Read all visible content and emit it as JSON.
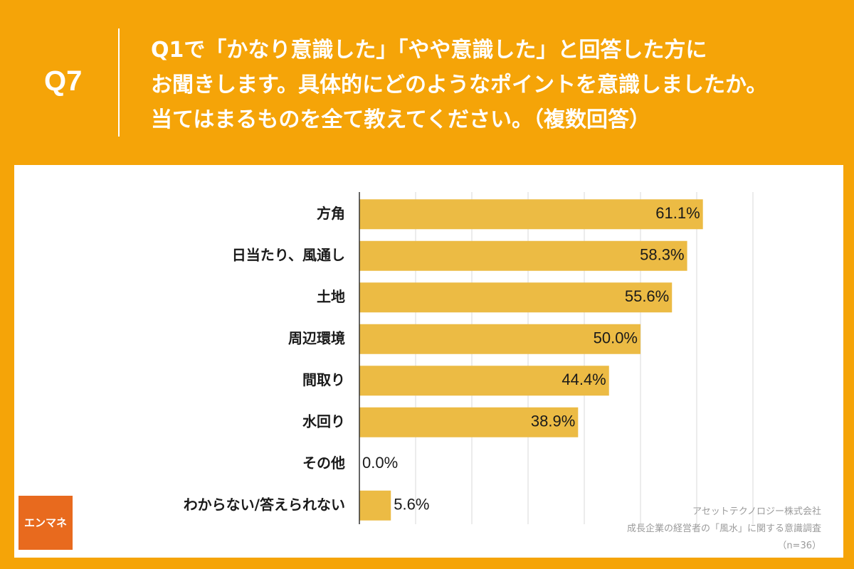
{
  "header": {
    "question_number": "Q7",
    "question_lines": [
      "Q1で「かなり意識した」「やや意識した」と回答した方に",
      "お聞きします。具体的にどのようなポイントを意識しましたか。",
      "当てはまるものを全て教えてください。（複数回答）"
    ]
  },
  "logo": {
    "text": "エンマネ"
  },
  "source": {
    "company": "アセットテクノロジー株式会社",
    "survey": "成長企業の経営者の「風水」に関する意識調査",
    "sample": "（n=36）"
  },
  "colors": {
    "background": "#f5a408",
    "bar": "#ecbb44",
    "grid": "#d9d9d9",
    "logo": "#e86a1e"
  },
  "chart_data": {
    "type": "bar",
    "orientation": "horizontal",
    "categories": [
      "方角",
      "日当たり、風通し",
      "土地",
      "周辺環境",
      "間取り",
      "水回り",
      "その他",
      "わからない/答えられない"
    ],
    "values": [
      61.1,
      58.3,
      55.6,
      50.0,
      44.4,
      38.9,
      0.0,
      5.6
    ],
    "value_labels": [
      "61.1%",
      "58.3%",
      "55.6%",
      "50.0%",
      "44.4%",
      "38.9%",
      "0.0%",
      "5.6%"
    ],
    "unit": "%",
    "xlim": [
      0,
      70
    ],
    "grid": true
  }
}
